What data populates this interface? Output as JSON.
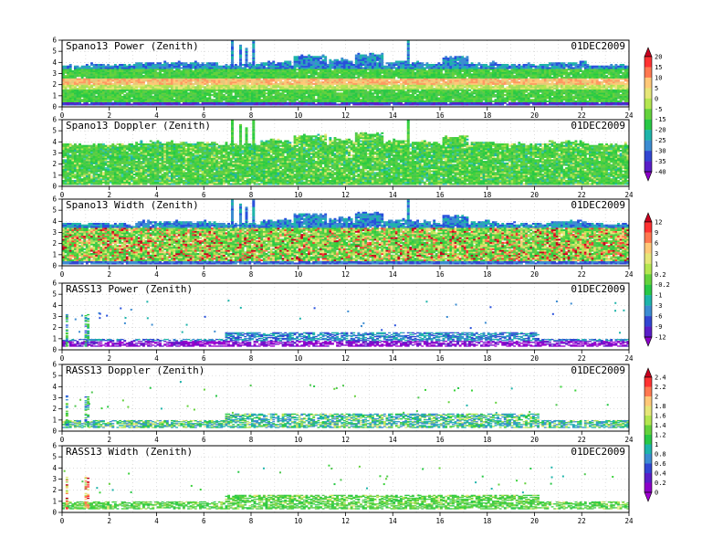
{
  "panels": [
    {
      "title": "Spano13 Power (Zenith)",
      "date": "01DEC2009",
      "kind": "spano-power"
    },
    {
      "title": "Spano13 Doppler (Zenith)",
      "date": "01DEC2009",
      "kind": "spano-doppler"
    },
    {
      "title": "Spano13 Width (Zenith)",
      "date": "01DEC2009",
      "kind": "spano-width"
    },
    {
      "title": "RASS13 Power (Zenith)",
      "date": "01DEC2009",
      "kind": "rass-power"
    },
    {
      "title": "RASS13 Doppler (Zenith)",
      "date": "01DEC2009",
      "kind": "rass-doppler"
    },
    {
      "title": "RASS13 Width (Zenith)",
      "date": "01DEC2009",
      "kind": "rass-width"
    }
  ],
  "colorbars": [
    {
      "labels": [
        "20",
        "15",
        "10",
        "5",
        "0",
        "-5",
        "-15",
        "-20",
        "-25",
        "-30",
        "-35",
        "-40"
      ],
      "colors": [
        "#c8001e",
        "#ff3232",
        "#ff7850",
        "#ffc878",
        "#e6e678",
        "#b4e650",
        "#64d23c",
        "#28c846",
        "#1eb4aa",
        "#3c8cd2",
        "#3246d2",
        "#5a1ec8",
        "#8c00c8"
      ]
    },
    {
      "labels": [
        "12",
        "9",
        "6",
        "3",
        "1",
        "0.2",
        "-0.2",
        "-1",
        "-3",
        "-6",
        "-9",
        "-12"
      ],
      "colors": [
        "#c8001e",
        "#ff3232",
        "#ff7850",
        "#ffc878",
        "#e6e678",
        "#b4e650",
        "#64d23c",
        "#28c846",
        "#1eb4aa",
        "#3c8cd2",
        "#3246d2",
        "#5a1ec8",
        "#8c00c8"
      ]
    },
    {
      "labels": [
        "2.4",
        "2.2",
        "2",
        "1.8",
        "1.6",
        "1.4",
        "1.2",
        "1",
        "0.8",
        "0.6",
        "0.4",
        "0.2",
        "0"
      ],
      "colors": [
        "#c8001e",
        "#ff3232",
        "#ff7850",
        "#ffc878",
        "#e6e678",
        "#b4e650",
        "#64d23c",
        "#28c846",
        "#1eb4aa",
        "#3c8cd2",
        "#3246d2",
        "#5a1ec8",
        "#8c00c8",
        "#a000d2"
      ]
    }
  ],
  "chart_data": {
    "type": "heatmap",
    "x_range": [
      0,
      24
    ],
    "y_range": [
      0,
      6
    ],
    "x_ticks": [
      "0",
      "2",
      "4",
      "6",
      "8",
      "10",
      "12",
      "14",
      "16",
      "18",
      "20",
      "22",
      "24"
    ],
    "y_ticks": [
      "0",
      "1",
      "2",
      "3",
      "4",
      "5",
      "6"
    ],
    "grid": true
  }
}
